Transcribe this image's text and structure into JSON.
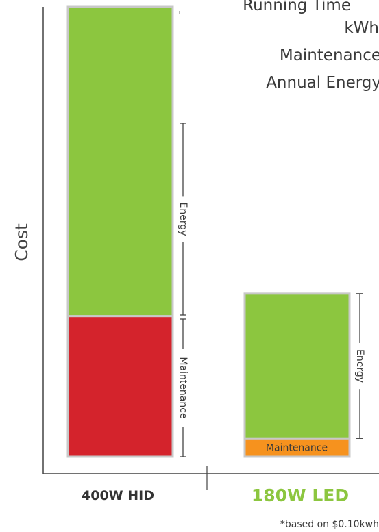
{
  "chart_data": {
    "type": "bar",
    "stacked": true,
    "categories": [
      "400W HID",
      "180W LED"
    ],
    "ylabel": "Cost",
    "series": [
      {
        "name": "Maintenance",
        "values": [
          1.0,
          0.13
        ],
        "colors": [
          "#d4232c",
          "#f6921e"
        ]
      },
      {
        "name": "Energy",
        "values": [
          2.2,
          1.03
        ],
        "colors": [
          "#8cc63f",
          "#8cc63f"
        ]
      }
    ],
    "category_label_colors": [
      "#333333",
      "#8cc63f"
    ],
    "bar_edge_color": "#c8c8c8",
    "ylim": [
      0,
      3.2
    ],
    "grid": false,
    "legend_lines": [
      "Running Time",
      "kWh",
      "Maintenance",
      "Annual Energy"
    ],
    "bracket_labels": {
      "hid": [
        "Energy",
        "Maintenance"
      ],
      "led": [
        "Energy",
        "Maintenance"
      ]
    },
    "footnote": "*based on $0.10kwh"
  }
}
